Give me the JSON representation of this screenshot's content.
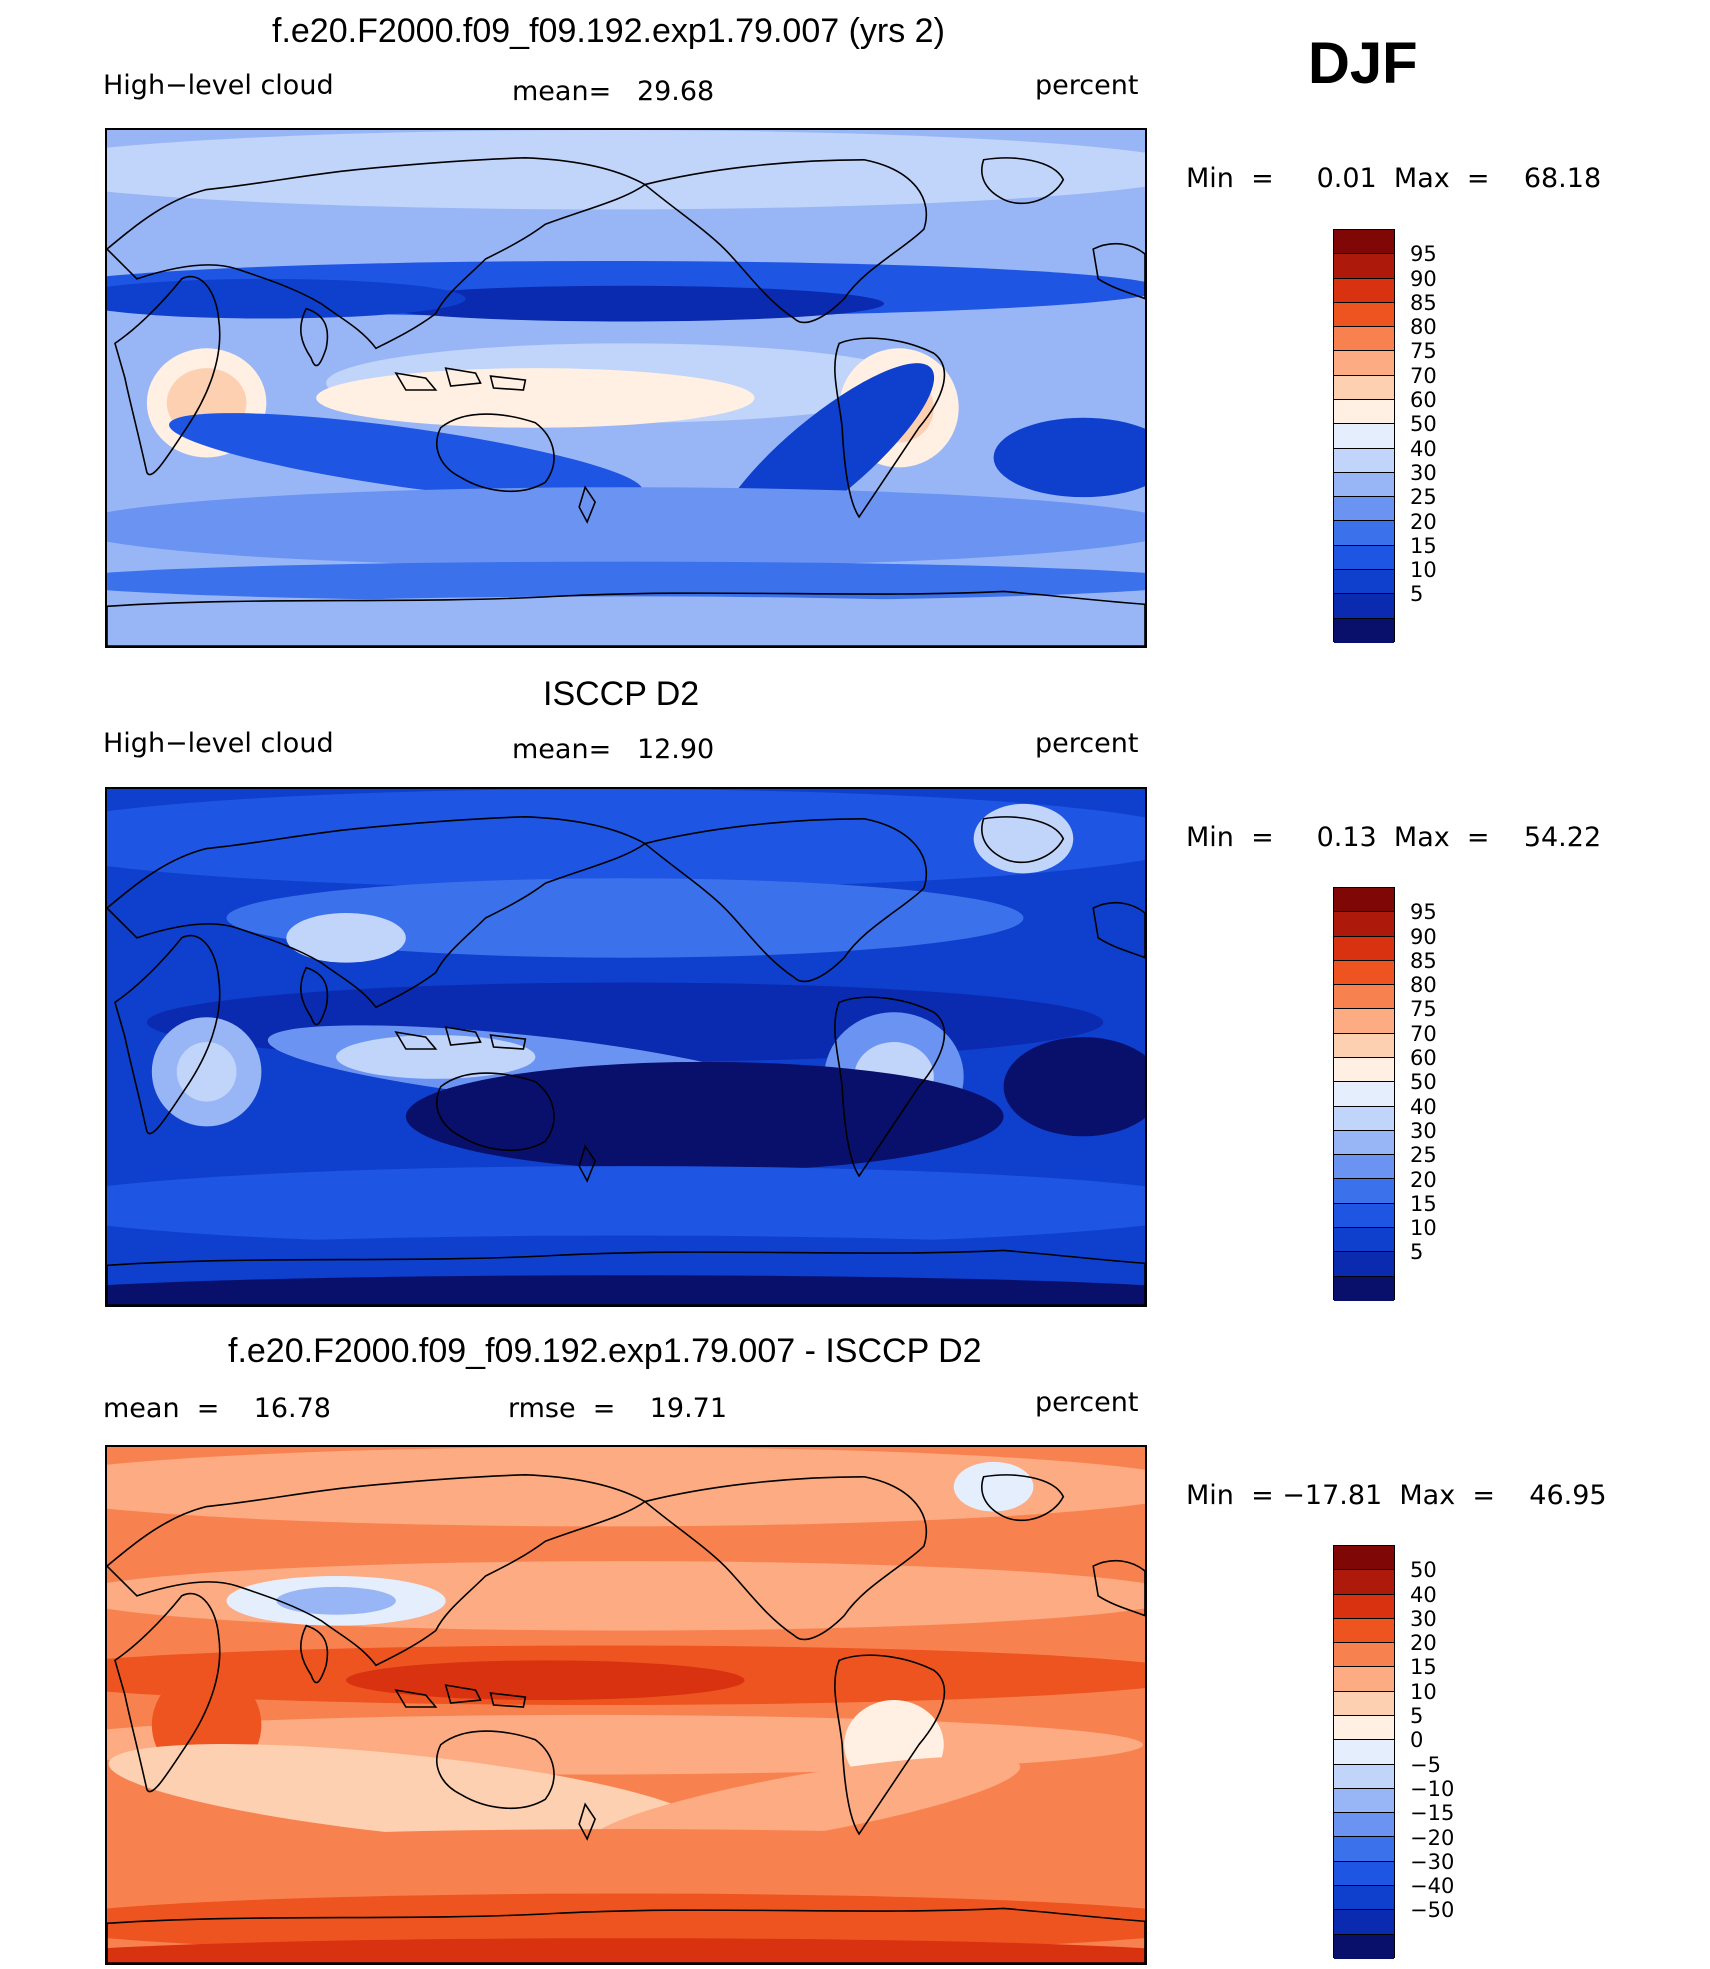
{
  "season": "DJF",
  "colors": {
    "scale_0_100": [
      "#08106b",
      "#0a2ab0",
      "#0f3fcd",
      "#1f55e3",
      "#3c71ec",
      "#6b94f2",
      "#98b6f6",
      "#c1d4fa",
      "#e5eefd",
      "#fff0e3",
      "#fdd0b2",
      "#fcab82",
      "#f8824f",
      "#ed5420",
      "#d83210",
      "#ad1a0b",
      "#7f0806"
    ],
    "scale_diff": [
      "#08106b",
      "#0a2ab0",
      "#0f3fcd",
      "#1f55e3",
      "#3c71ec",
      "#6b94f2",
      "#98b6f6",
      "#c1d4fa",
      "#e5eefd",
      "#fff0e3",
      "#fdd0b2",
      "#fcab82",
      "#f8824f",
      "#ed5420",
      "#d83210",
      "#ad1a0b",
      "#7f0806"
    ]
  },
  "panels": [
    {
      "title": "f.e20.F2000.f09_f09.192.exp1.79.007 (yrs 2)",
      "left_label": "High−level cloud",
      "center_label": "mean=   29.68",
      "right_label": "percent",
      "minmax": "Min  =     0.01  Max  =    68.18",
      "scale": "scale_0_100",
      "map_kind": "model",
      "levels": [
        "95",
        "90",
        "85",
        "80",
        "75",
        "70",
        "60",
        "50",
        "40",
        "30",
        "25",
        "20",
        "15",
        "10",
        "5"
      ]
    },
    {
      "title": "ISCCP D2",
      "left_label": "High−level cloud",
      "center_label": "mean=   12.90",
      "right_label": "percent",
      "minmax": "Min  =     0.13  Max  =    54.22",
      "scale": "scale_0_100",
      "map_kind": "obs",
      "levels": [
        "95",
        "90",
        "85",
        "80",
        "75",
        "70",
        "60",
        "50",
        "40",
        "30",
        "25",
        "20",
        "15",
        "10",
        "5"
      ]
    },
    {
      "title": "f.e20.F2000.f09_f09.192.exp1.79.007 - ISCCP D2",
      "left_label": "mean  =    16.78",
      "center_label": "rmse  =    19.71",
      "right_label": "percent",
      "minmax": "Min  = −17.81  Max  =    46.95",
      "scale": "scale_diff",
      "map_kind": "diff",
      "levels": [
        "50",
        "40",
        "30",
        "20",
        "15",
        "10",
        "5",
        "0",
        "−5",
        "−10",
        "−15",
        "−20",
        "−30",
        "−40",
        "−50"
      ]
    }
  ]
}
